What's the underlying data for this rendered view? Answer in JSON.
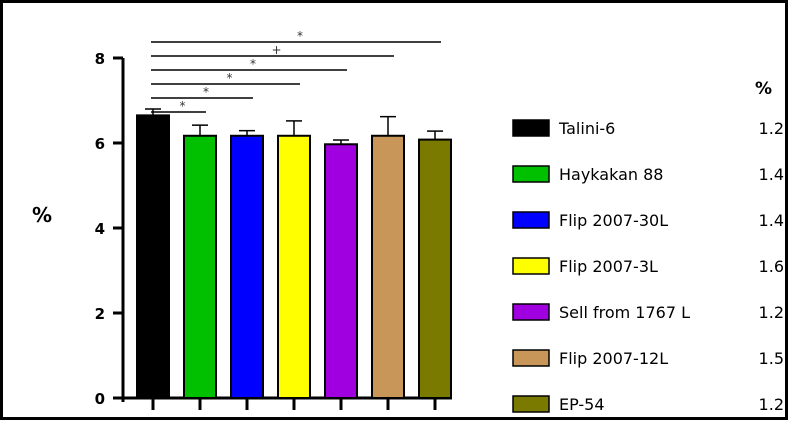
{
  "chart_data": {
    "type": "bar",
    "ylabel": "%",
    "ylim": [
      0,
      8
    ],
    "yticks": [
      0,
      2,
      4,
      6,
      8
    ],
    "categories": [
      "Talini-6",
      "Haykakan 88",
      "Flip 2007-30L",
      "Flip 2007-3L",
      "Sell from 1767 L",
      "Flip 2007-12L",
      "EP-54"
    ],
    "values": [
      6.65,
      6.17,
      6.17,
      6.17,
      5.97,
      6.17,
      6.08
    ],
    "errors": [
      0.15,
      0.25,
      0.12,
      0.35,
      0.1,
      0.45,
      0.2
    ],
    "colors": [
      "#000000",
      "#00c000",
      "#0000ff",
      "#ffff00",
      "#a000e0",
      "#c89658",
      "#7a7a00"
    ],
    "legend": {
      "placement": "right",
      "header": "%",
      "values": [
        "1.2",
        "1.4",
        "1.4",
        "1.6",
        "1.2",
        "1.5",
        "1.2"
      ]
    },
    "significance_marker": "*",
    "significance_marks": [
      "*",
      "*",
      "*",
      "*",
      "+",
      "*"
    ],
    "grid": false
  }
}
